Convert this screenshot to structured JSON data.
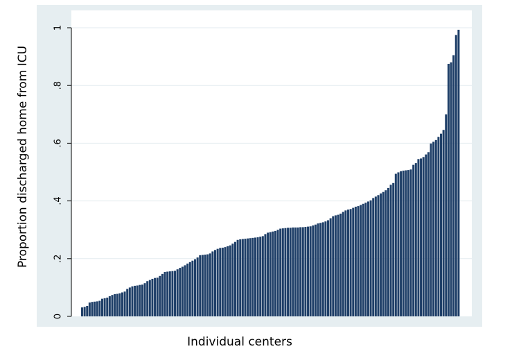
{
  "chart_data": {
    "type": "bar",
    "title": "",
    "xlabel": "Individual centers",
    "ylabel": "Proportion discharged home from ICU",
    "ylim": [
      0,
      1
    ],
    "yticks": [
      0,
      0.2,
      0.4,
      0.6,
      0.8,
      1
    ],
    "ytick_labels": [
      "0",
      ".2",
      ".4",
      ".6",
      ".8",
      "1"
    ],
    "grid": true,
    "legend": "none",
    "colors": {
      "bar": "#1f3f68",
      "bar_edge": "#ffffff",
      "plot_background": "#ffffff",
      "outer_background": "#e6eef1",
      "grid": "#e3ebef"
    },
    "values": [
      0.031,
      0.033,
      0.036,
      0.048,
      0.05,
      0.051,
      0.052,
      0.054,
      0.061,
      0.063,
      0.065,
      0.07,
      0.074,
      0.077,
      0.078,
      0.08,
      0.083,
      0.086,
      0.095,
      0.1,
      0.104,
      0.106,
      0.107,
      0.109,
      0.11,
      0.115,
      0.122,
      0.126,
      0.13,
      0.133,
      0.134,
      0.14,
      0.147,
      0.154,
      0.155,
      0.156,
      0.157,
      0.158,
      0.163,
      0.168,
      0.172,
      0.177,
      0.183,
      0.188,
      0.193,
      0.198,
      0.204,
      0.212,
      0.213,
      0.214,
      0.215,
      0.218,
      0.225,
      0.23,
      0.234,
      0.237,
      0.238,
      0.24,
      0.243,
      0.246,
      0.252,
      0.258,
      0.265,
      0.267,
      0.268,
      0.269,
      0.27,
      0.271,
      0.272,
      0.273,
      0.274,
      0.276,
      0.278,
      0.285,
      0.29,
      0.292,
      0.294,
      0.296,
      0.3,
      0.304,
      0.305,
      0.306,
      0.307,
      0.307,
      0.308,
      0.308,
      0.308,
      0.309,
      0.309,
      0.31,
      0.311,
      0.312,
      0.315,
      0.318,
      0.322,
      0.324,
      0.326,
      0.329,
      0.333,
      0.34,
      0.347,
      0.35,
      0.352,
      0.356,
      0.362,
      0.367,
      0.37,
      0.372,
      0.376,
      0.38,
      0.382,
      0.386,
      0.39,
      0.394,
      0.398,
      0.402,
      0.41,
      0.415,
      0.42,
      0.426,
      0.431,
      0.437,
      0.445,
      0.456,
      0.462,
      0.494,
      0.499,
      0.503,
      0.505,
      0.506,
      0.507,
      0.509,
      0.525,
      0.531,
      0.545,
      0.547,
      0.552,
      0.561,
      0.569,
      0.599,
      0.605,
      0.611,
      0.622,
      0.633,
      0.646,
      0.7,
      0.875,
      0.88,
      0.905,
      0.975,
      0.993
    ]
  }
}
